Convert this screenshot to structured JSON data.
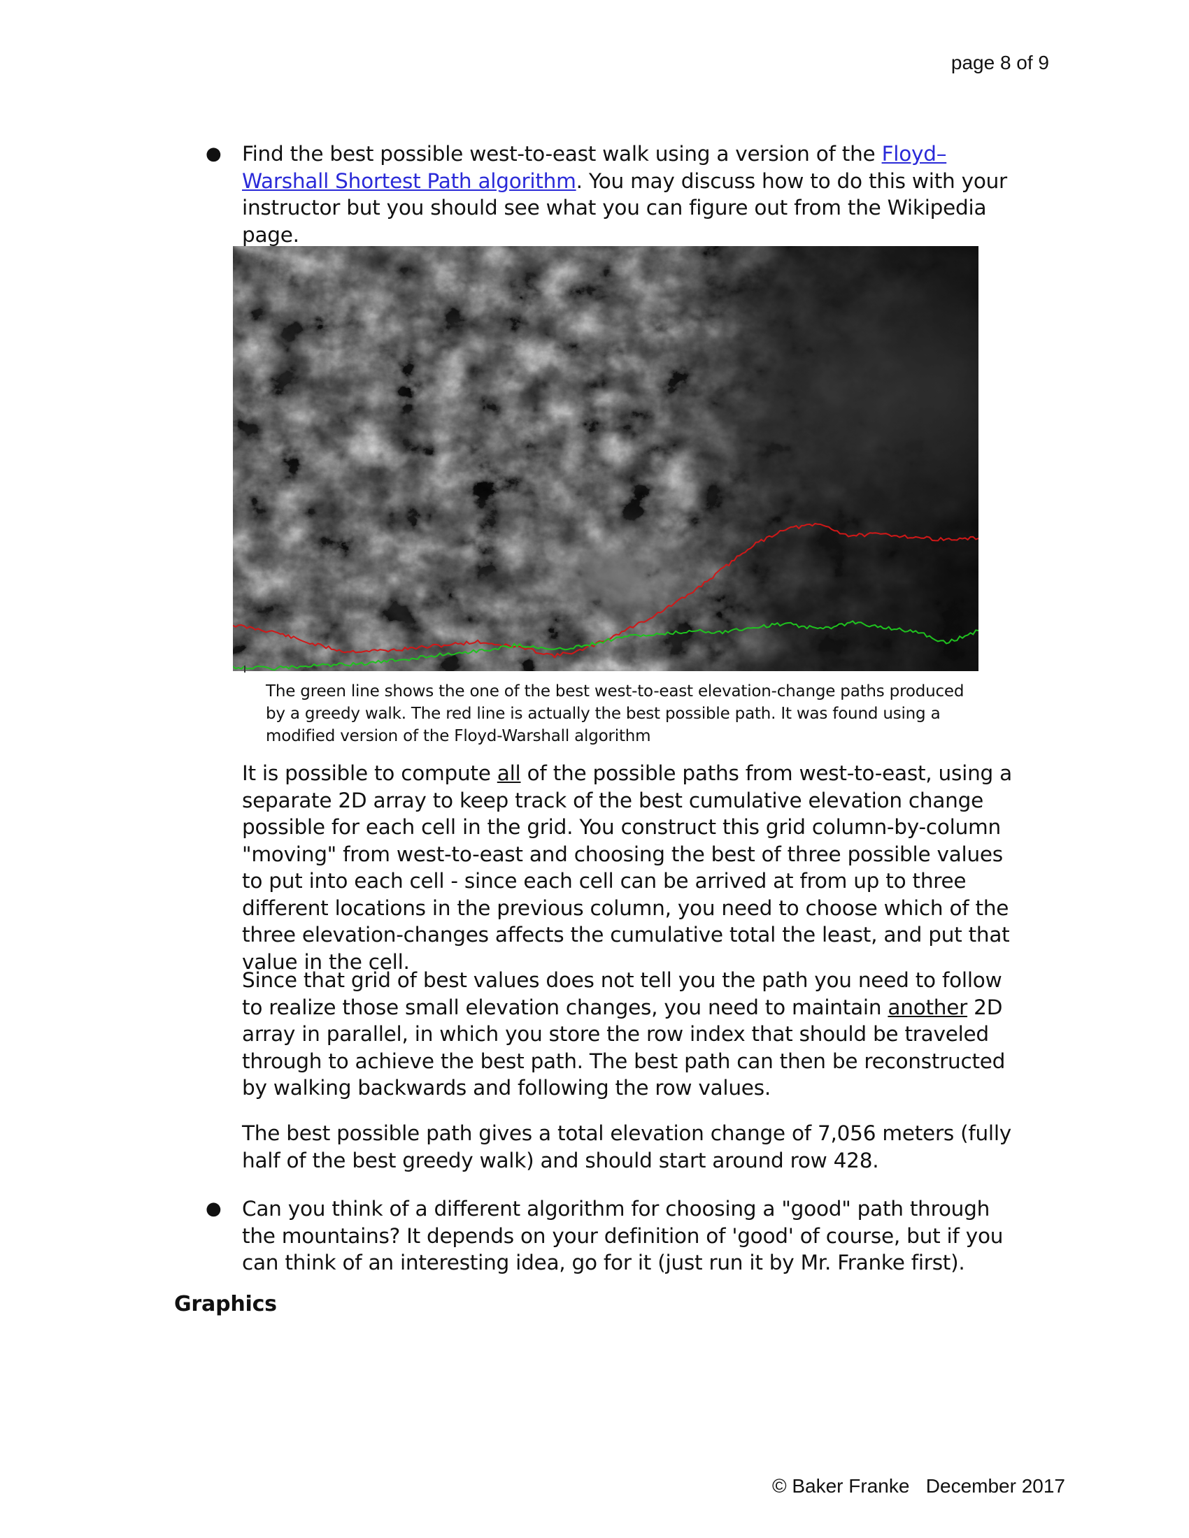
{
  "header": {
    "page_number": "page 8 of 9"
  },
  "bullet1": {
    "text_before_link": "Find the best possible west-to-east walk using a version of the ",
    "link_text": "Floyd–Warshall Shortest Path algorithm",
    "text_after_link": ". You may discuss how to do this with your instructor but you should see what you can figure out from the Wikipedia page."
  },
  "figure": {
    "caption": "The green line shows the one of the best west-to-east elevation-change paths produced by a greedy walk. The red line is actually the best possible path. It was found using a modified version of the Floyd-Warshall algorithm",
    "path_colors": {
      "greedy": "#1fc21f",
      "best": "#d01818"
    }
  },
  "para1": {
    "before": "It is possible to compute ",
    "emph": "all",
    "after": " of the possible paths from west-to-east, using a separate 2D array to keep track of the best cumulative elevation change possible for each cell in the grid.  You construct this grid column-by-column \"moving\" from west-to-east and choosing the best of three possible values to put into each cell - since each cell can be arrived at from up to three different locations in the previous column, you need to choose which of the three elevation-changes affects the cumulative total the least, and put that value in the cell."
  },
  "para2": {
    "before": "Since that grid of best values does not tell you the path you need to follow to realize those small elevation changes, you need to maintain ",
    "emph": "another",
    "after": " 2D array in parallel, in which you store the row index that should be traveled through to achieve the best path.  The best path can then be reconstructed by walking backwards and following the row values."
  },
  "para3": {
    "text": "The best possible path gives a total elevation change of 7,056 meters (fully half of the best greedy walk) and should start around row 428."
  },
  "bullet2": {
    "text": "Can you think of a different algorithm for choosing a \"good\" path through the mountains?  It depends on your definition of 'good' of course, but if you can think of an interesting idea, go for it (just run it by Mr. Franke first)."
  },
  "section_heading": "Graphics",
  "footer": {
    "text": "© Baker Franke   December 2017"
  }
}
